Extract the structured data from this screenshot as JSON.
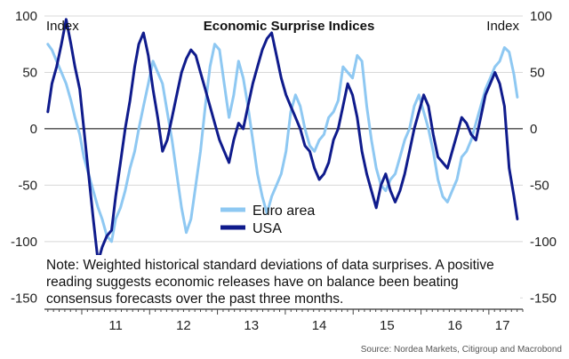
{
  "chart_data": {
    "type": "line",
    "title": "Economic Surprise Indices",
    "ylabel_left": "Index",
    "ylabel_right": "Index",
    "ylim": [
      -160,
      100
    ],
    "yticks": [
      100,
      50,
      0,
      -50,
      -100,
      -150
    ],
    "xlim": [
      2010.45,
      2017.5
    ],
    "xticks": [
      {
        "label": "11",
        "x": 2011.5
      },
      {
        "label": "12",
        "x": 2012.5
      },
      {
        "label": "13",
        "x": 2013.5
      },
      {
        "label": "14",
        "x": 2014.5
      },
      {
        "label": "15",
        "x": 2015.5
      },
      {
        "label": "16",
        "x": 2016.5
      },
      {
        "label": "17",
        "x": 2017.2
      }
    ],
    "legend": "center-left",
    "series": [
      {
        "name": "Euro area",
        "color": "#8ec8f2",
        "x": [
          2010.5,
          2010.56,
          2010.63,
          2010.7,
          2010.77,
          2010.84,
          2010.9,
          2010.97,
          2011.03,
          2011.1,
          2011.17,
          2011.24,
          2011.3,
          2011.37,
          2011.44,
          2011.5,
          2011.57,
          2011.64,
          2011.71,
          2011.78,
          2011.84,
          2011.91,
          2011.98,
          2012.05,
          2012.12,
          2012.19,
          2012.26,
          2012.33,
          2012.4,
          2012.47,
          2012.54,
          2012.61,
          2012.68,
          2012.75,
          2012.82,
          2012.89,
          2012.96,
          2013.03,
          2013.1,
          2013.17,
          2013.24,
          2013.31,
          2013.38,
          2013.45,
          2013.52,
          2013.59,
          2013.66,
          2013.73,
          2013.8,
          2013.87,
          2013.94,
          2014.01,
          2014.08,
          2014.15,
          2014.22,
          2014.29,
          2014.36,
          2014.43,
          2014.5,
          2014.57,
          2014.64,
          2014.71,
          2014.78,
          2014.85,
          2014.92,
          2014.99,
          2015.06,
          2015.13,
          2015.2,
          2015.27,
          2015.34,
          2015.41,
          2015.48,
          2015.55,
          2015.62,
          2015.69,
          2015.76,
          2015.83,
          2015.9,
          2015.97,
          2016.04,
          2016.11,
          2016.18,
          2016.25,
          2016.32,
          2016.39,
          2016.46,
          2016.53,
          2016.6,
          2016.67,
          2016.74,
          2016.81,
          2016.88,
          2016.95,
          2017.02,
          2017.09,
          2017.16,
          2017.23,
          2017.3,
          2017.37,
          2017.42
        ],
        "values": [
          75,
          70,
          60,
          50,
          40,
          25,
          10,
          -5,
          -25,
          -40,
          -55,
          -70,
          -80,
          -95,
          -100,
          -80,
          -70,
          -55,
          -35,
          -20,
          0,
          20,
          40,
          60,
          50,
          40,
          15,
          -10,
          -40,
          -70,
          -92,
          -80,
          -50,
          -20,
          20,
          55,
          75,
          70,
          40,
          10,
          30,
          60,
          45,
          20,
          -10,
          -40,
          -60,
          -75,
          -60,
          -50,
          -40,
          -20,
          15,
          30,
          20,
          0,
          -15,
          -20,
          -10,
          -5,
          10,
          15,
          25,
          55,
          50,
          45,
          65,
          60,
          20,
          -10,
          -35,
          -50,
          -55,
          -45,
          -40,
          -25,
          -10,
          0,
          20,
          30,
          15,
          0,
          -20,
          -45,
          -60,
          -65,
          -55,
          -45,
          -25,
          -20,
          -10,
          5,
          20,
          35,
          45,
          55,
          60,
          72,
          68,
          48,
          28
        ]
      },
      {
        "name": "USA",
        "color": "#0f1b8c",
        "x": [
          2010.5,
          2010.56,
          2010.63,
          2010.7,
          2010.77,
          2010.84,
          2010.9,
          2010.97,
          2011.03,
          2011.1,
          2011.17,
          2011.24,
          2011.3,
          2011.37,
          2011.44,
          2011.5,
          2011.57,
          2011.64,
          2011.71,
          2011.78,
          2011.84,
          2011.91,
          2011.98,
          2012.05,
          2012.12,
          2012.19,
          2012.26,
          2012.33,
          2012.4,
          2012.47,
          2012.54,
          2012.61,
          2012.68,
          2012.75,
          2012.82,
          2012.89,
          2012.96,
          2013.03,
          2013.1,
          2013.17,
          2013.24,
          2013.31,
          2013.38,
          2013.45,
          2013.52,
          2013.59,
          2013.66,
          2013.73,
          2013.8,
          2013.87,
          2013.94,
          2014.01,
          2014.08,
          2014.15,
          2014.22,
          2014.29,
          2014.36,
          2014.43,
          2014.5,
          2014.57,
          2014.64,
          2014.71,
          2014.78,
          2014.85,
          2014.92,
          2014.99,
          2015.06,
          2015.13,
          2015.2,
          2015.27,
          2015.34,
          2015.41,
          2015.48,
          2015.55,
          2015.62,
          2015.69,
          2015.76,
          2015.83,
          2015.9,
          2015.97,
          2016.04,
          2016.11,
          2016.18,
          2016.25,
          2016.32,
          2016.39,
          2016.46,
          2016.53,
          2016.6,
          2016.67,
          2016.74,
          2016.81,
          2016.88,
          2016.95,
          2017.02,
          2017.09,
          2017.16,
          2017.23,
          2017.3,
          2017.37,
          2017.42
        ],
        "values": [
          15,
          40,
          55,
          75,
          97,
          75,
          55,
          35,
          0,
          -40,
          -80,
          -118,
          -105,
          -95,
          -90,
          -60,
          -30,
          0,
          25,
          55,
          75,
          85,
          65,
          35,
          10,
          -20,
          -10,
          10,
          30,
          50,
          62,
          70,
          65,
          50,
          35,
          20,
          5,
          -10,
          -20,
          -30,
          -10,
          5,
          0,
          20,
          40,
          55,
          70,
          80,
          85,
          65,
          45,
          30,
          20,
          10,
          0,
          -15,
          -20,
          -35,
          -45,
          -40,
          -30,
          -10,
          0,
          20,
          40,
          30,
          10,
          -20,
          -40,
          -55,
          -70,
          -50,
          -40,
          -55,
          -65,
          -55,
          -40,
          -20,
          0,
          15,
          30,
          20,
          -5,
          -25,
          -30,
          -35,
          -20,
          -5,
          10,
          5,
          -5,
          -10,
          10,
          30,
          40,
          50,
          40,
          20,
          -35,
          -60,
          -80
        ]
      }
    ],
    "annotation": "Note: Weighted historical standard deviations of data surprises. A positive reading suggests economic releases have on balance been beating consensus forecasts over the past three months.",
    "source": "Source: Nordea Markets, Citigroup and Macrobond"
  }
}
